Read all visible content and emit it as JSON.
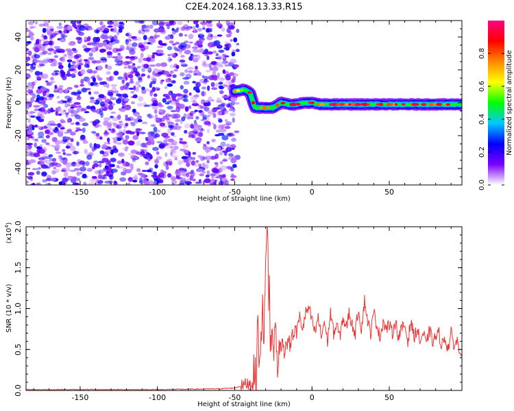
{
  "chart_data": [
    {
      "type": "heatmap",
      "title": "C2E4.2024.168.13.33.R15",
      "xlabel": "Height of straight line (km)",
      "ylabel": "Frequency (Hz)",
      "xlim": [
        -185,
        97
      ],
      "ylim": [
        -50,
        50
      ],
      "xticks": [
        -150,
        -100,
        -50,
        0,
        50
      ],
      "yticks": [
        -40,
        -20,
        0,
        20,
        40
      ],
      "colorbar": {
        "label": "Normalized spectral amplitude",
        "range": [
          0,
          1
        ],
        "ticks": [
          "0.0",
          "0.2",
          "0.4",
          "0.6",
          "0.8"
        ],
        "colors": [
          "#ffffff",
          "#7a00ff",
          "#0000ff",
          "#00c8ff",
          "#00ff00",
          "#ffff00",
          "#ff8800",
          "#ff0000",
          "#ff0080"
        ]
      },
      "ridge": [
        {
          "x": -50,
          "y": 7
        },
        {
          "x": -44,
          "y": 8
        },
        {
          "x": -40,
          "y": 6
        },
        {
          "x": -37,
          "y": -3
        },
        {
          "x": -30,
          "y": -3
        },
        {
          "x": -25,
          "y": -3
        },
        {
          "x": -20,
          "y": 0
        },
        {
          "x": -15,
          "y": -1
        },
        {
          "x": -10,
          "y": -1
        },
        {
          "x": -5,
          "y": 0
        },
        {
          "x": 0,
          "y": 0
        },
        {
          "x": 5,
          "y": -1
        },
        {
          "x": 10,
          "y": -1
        },
        {
          "x": 20,
          "y": -1
        },
        {
          "x": 40,
          "y": -1
        },
        {
          "x": 60,
          "y": -1
        },
        {
          "x": 80,
          "y": -1
        },
        {
          "x": 97,
          "y": -1
        }
      ],
      "noise_region": {
        "x_min": -185,
        "x_max": -48
      },
      "grid": false
    },
    {
      "type": "line",
      "xlabel": "Height of straight line (km)",
      "ylabel": "SNR (10 * v/v)",
      "y_scale_label": "(x10",
      "y_scale_exp": "4",
      "y_scale_close": ")",
      "xlim": [
        -185,
        97
      ],
      "ylim": [
        0,
        2.0
      ],
      "xticks": [
        -150,
        -100,
        -50,
        0,
        50
      ],
      "yticks": [
        "0.0",
        "0.5",
        "1.0",
        "1.5",
        "2.0"
      ],
      "line_color": "#ee3333",
      "grid": false,
      "series": [
        {
          "x": [
            -185,
            -150,
            -100,
            -60,
            -50,
            -45,
            -40,
            -38,
            -36,
            -35,
            -34,
            -33,
            -32,
            -31,
            -30,
            -29,
            -28.5,
            -28,
            -27.5,
            -27,
            -26,
            -25,
            -24,
            -23,
            -22,
            -21,
            -20,
            -19,
            -18,
            -17,
            -16,
            -15,
            -14,
            -13,
            -12,
            -11,
            -10,
            -8,
            -6,
            -4,
            -2,
            0,
            2,
            4,
            6,
            8,
            10,
            12,
            14,
            16,
            18,
            20,
            22,
            24,
            26,
            28,
            30,
            32,
            34,
            36,
            38,
            40,
            42,
            44,
            46,
            48,
            50,
            52,
            54,
            56,
            58,
            60,
            62,
            64,
            66,
            68,
            70,
            72,
            74,
            76,
            78,
            80,
            82,
            84,
            86,
            88,
            90,
            92,
            94,
            96,
            97
          ],
          "values": [
            0.01,
            0.01,
            0.01,
            0.02,
            0.03,
            0.06,
            0.1,
            0.2,
            0.15,
            0.9,
            0.3,
            0.5,
            1.2,
            0.6,
            1.5,
            1.9,
            2.0,
            1.1,
            1.4,
            0.4,
            0.8,
            0.35,
            0.9,
            0.5,
            0.3,
            0.5,
            0.45,
            0.7,
            0.4,
            0.6,
            0.55,
            0.65,
            0.5,
            0.75,
            0.6,
            0.8,
            0.7,
            0.9,
            0.75,
            0.95,
            1.0,
            0.85,
            0.7,
            0.9,
            0.65,
            0.85,
            0.6,
            0.95,
            0.7,
            0.8,
            0.65,
            0.9,
            0.75,
            0.95,
            0.8,
            0.7,
            1.0,
            0.75,
            1.1,
            0.85,
            0.7,
            0.95,
            0.8,
            0.65,
            0.85,
            0.75,
            0.8,
            0.7,
            0.85,
            0.65,
            0.75,
            0.8,
            0.6,
            0.85,
            0.65,
            0.75,
            0.6,
            0.7,
            0.55,
            0.75,
            0.6,
            0.65,
            0.7,
            0.55,
            0.65,
            0.5,
            0.7,
            0.55,
            0.6,
            0.5,
            0.45
          ]
        }
      ]
    }
  ]
}
